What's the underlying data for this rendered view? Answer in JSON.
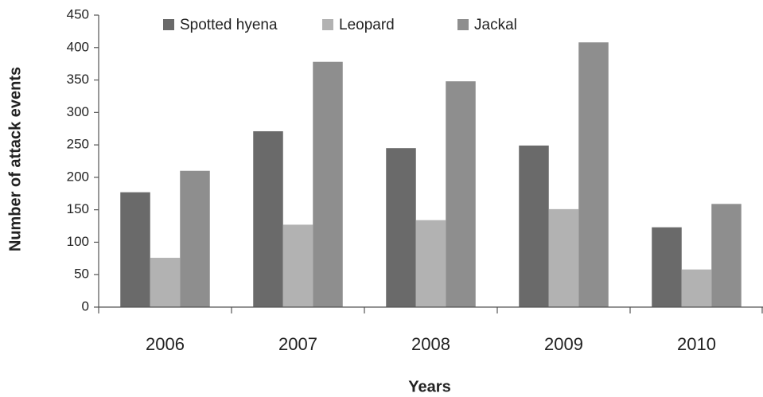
{
  "chart_data": {
    "type": "bar",
    "x_label": "Years",
    "y_label": "Number of attack events",
    "categories": [
      "2006",
      "2007",
      "2008",
      "2009",
      "2010"
    ],
    "series": [
      {
        "name": "Spotted hyena",
        "color": "#6a6a6a",
        "values": [
          177,
          271,
          245,
          249,
          123
        ]
      },
      {
        "name": "Leopard",
        "color": "#b2b2b2",
        "values": [
          76,
          127,
          134,
          151,
          58
        ]
      },
      {
        "name": "Jackal",
        "color": "#8e8e8e",
        "values": [
          210,
          378,
          348,
          408,
          159
        ]
      }
    ],
    "ylim": [
      0,
      450
    ],
    "yticks": [
      0,
      50,
      100,
      150,
      200,
      250,
      300,
      350,
      400,
      450
    ],
    "legend": "top"
  }
}
